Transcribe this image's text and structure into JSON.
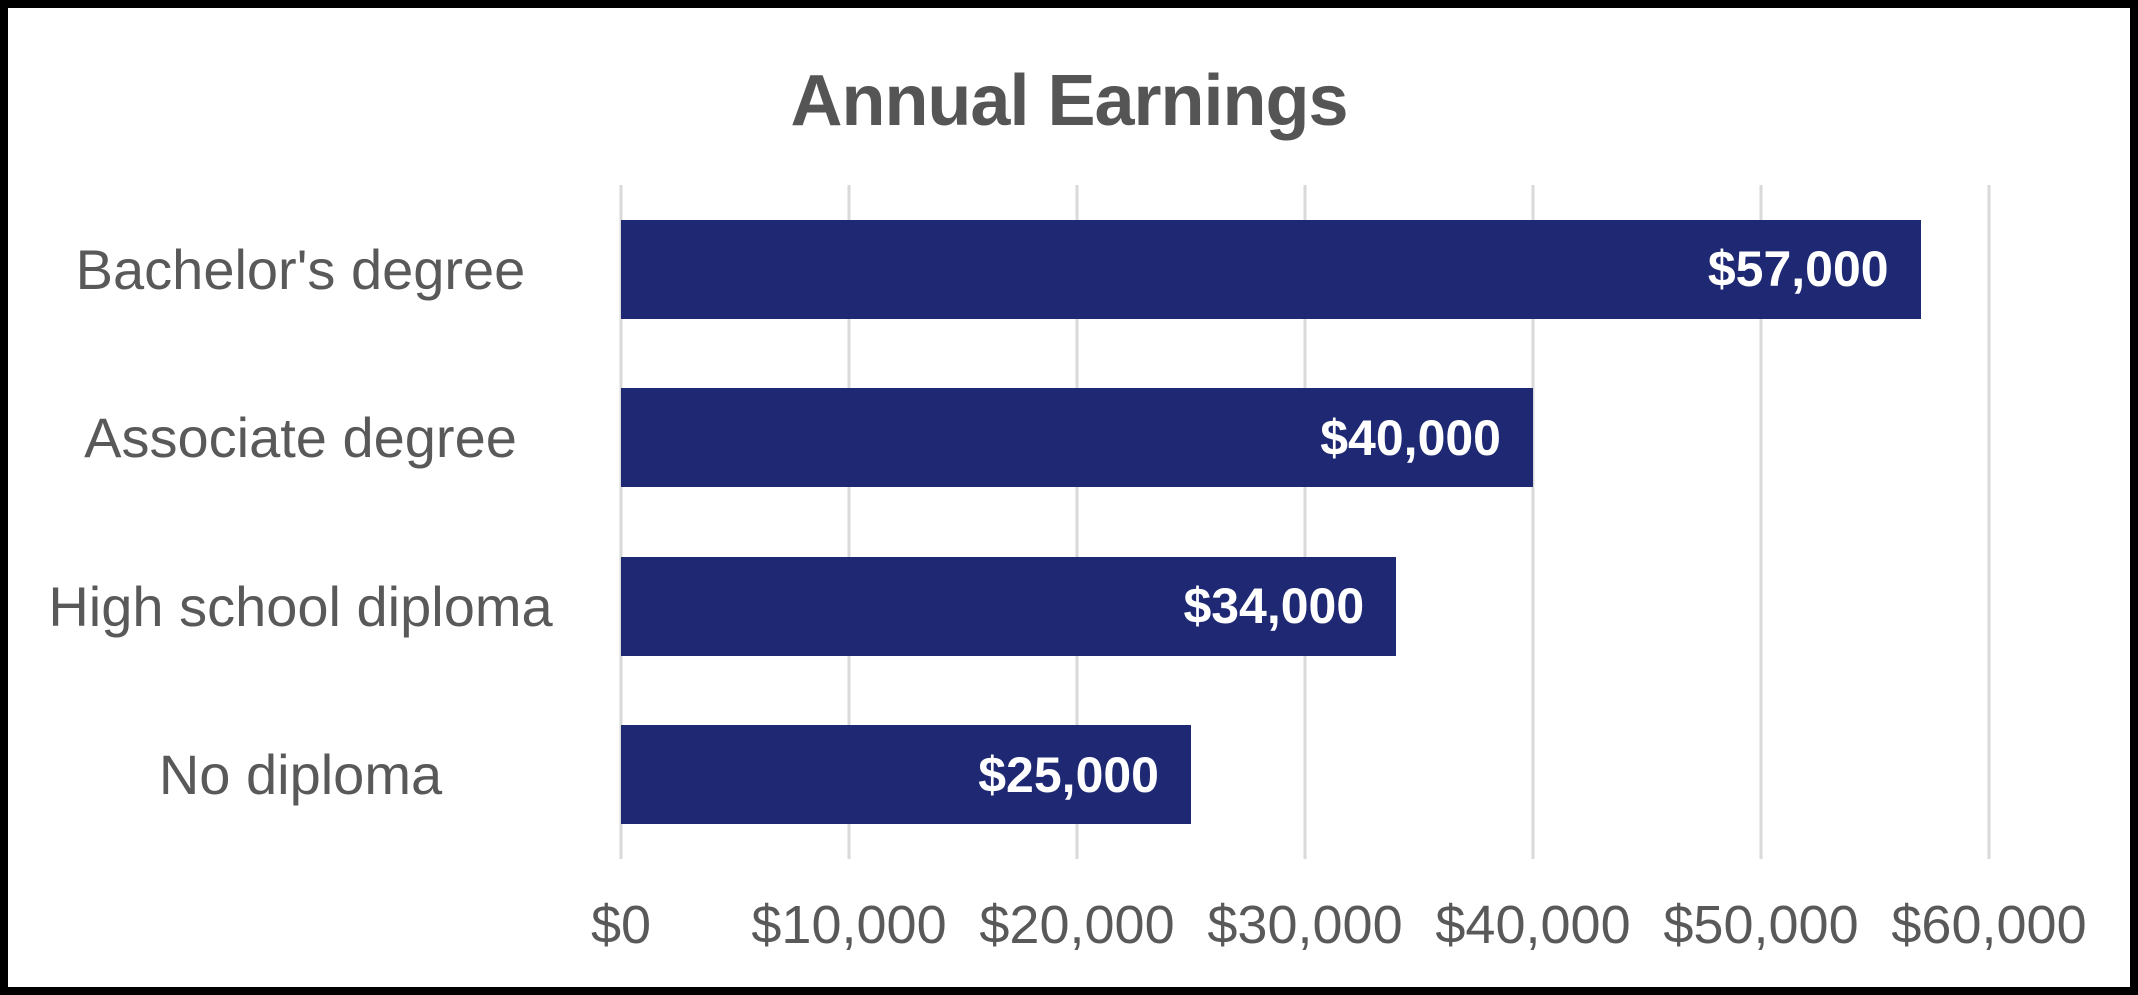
{
  "chart_data": {
    "type": "bar",
    "orientation": "horizontal",
    "title": "Annual Earnings",
    "categories": [
      "Bachelor's degree",
      "Associate degree",
      "High school diploma",
      "No diploma"
    ],
    "values": [
      57000,
      40000,
      34000,
      25000
    ],
    "value_labels": [
      "$57,000",
      "$40,000",
      "$34,000",
      "$25,000"
    ],
    "x_ticks": [
      {
        "value": 0,
        "label": "$0"
      },
      {
        "value": 10000,
        "label": "$10,000"
      },
      {
        "value": 20000,
        "label": "$20,000"
      },
      {
        "value": 30000,
        "label": "$30,000"
      },
      {
        "value": 40000,
        "label": "$40,000"
      },
      {
        "value": 50000,
        "label": "$50,000"
      },
      {
        "value": 60000,
        "label": "$60,000"
      }
    ],
    "xlim": [
      0,
      60000
    ],
    "xlabel": "",
    "ylabel": "",
    "grid": true,
    "legend": false,
    "colors": {
      "bar": "#1E2873",
      "grid": "#D9D9D9",
      "text": "#595959",
      "title": "#555555",
      "value_label": "#FFFFFF",
      "frame": "#000000",
      "background": "#FFFFFF"
    }
  }
}
